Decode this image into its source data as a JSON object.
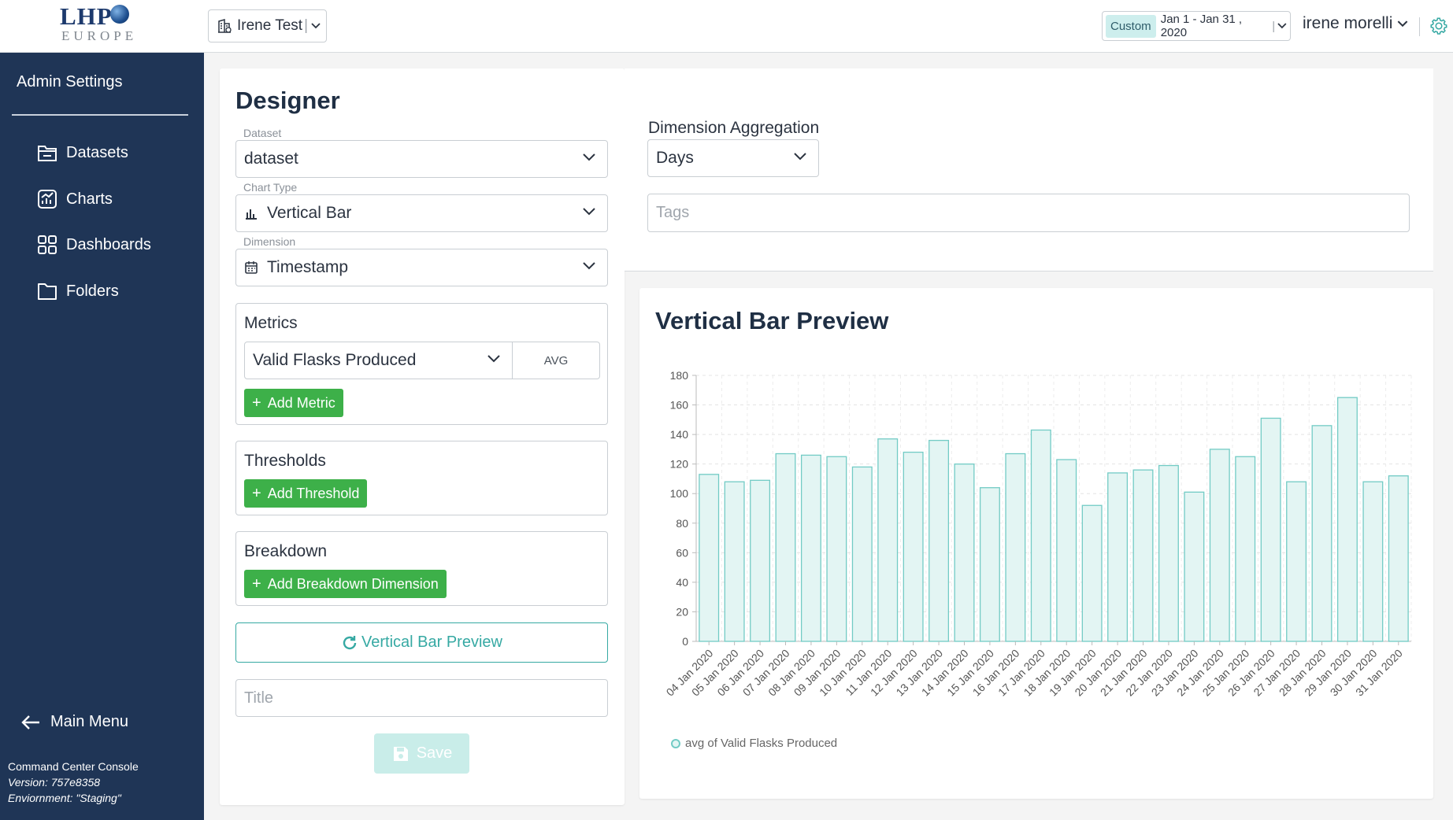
{
  "header": {
    "logo_main": "LHP",
    "logo_sub": "EUROPE",
    "project": "Irene Test",
    "date_badge": "Custom",
    "date_range": "Jan 1 - Jan 31 , 2020",
    "user": "irene morelli"
  },
  "sidebar": {
    "title": "Admin Settings",
    "items": [
      {
        "label": "Datasets",
        "icon": "dataset-icon"
      },
      {
        "label": "Charts",
        "icon": "chart-icon"
      },
      {
        "label": "Dashboards",
        "icon": "dashboard-icon"
      },
      {
        "label": "Folders",
        "icon": "folder-icon"
      }
    ],
    "main_menu": "Main Menu",
    "footer": {
      "app": "Command Center Console",
      "version": "Version: 757e8358",
      "environment": "Enviornment: \"Staging\""
    }
  },
  "designer": {
    "title": "Designer",
    "dataset_label": "Dataset",
    "dataset_value": "dataset",
    "chart_type_label": "Chart Type",
    "chart_type_value": "Vertical Bar",
    "dimension_label": "Dimension",
    "dimension_value": "Timestamp",
    "metrics_title": "Metrics",
    "metric_value": "Valid Flasks Produced",
    "metric_agg": "AVG",
    "add_metric": "Add Metric",
    "thresholds_title": "Thresholds",
    "add_threshold": "Add Threshold",
    "breakdown_title": "Breakdown",
    "add_breakdown": "Add Breakdown Dimension",
    "preview_button": "Vertical Bar Preview",
    "title_placeholder": "Title",
    "save_button": "Save",
    "aggregation_label": "Dimension Aggregation",
    "aggregation_value": "Days",
    "tags_placeholder": "Tags"
  },
  "preview": {
    "title": "Vertical Bar Preview"
  },
  "colors": {
    "sidebar_bg": "#1f3556",
    "accent_green": "#3db049",
    "accent_teal": "#36a9a3",
    "bar_fill": "#e3f5f3",
    "bar_stroke": "#72cbc5"
  },
  "chart_data": {
    "type": "bar",
    "categories": [
      "04 Jan 2020",
      "05 Jan 2020",
      "06 Jan 2020",
      "07 Jan 2020",
      "08 Jan 2020",
      "09 Jan 2020",
      "10 Jan 2020",
      "11 Jan 2020",
      "12 Jan 2020",
      "13 Jan 2020",
      "14 Jan 2020",
      "15 Jan 2020",
      "16 Jan 2020",
      "17 Jan 2020",
      "18 Jan 2020",
      "19 Jan 2020",
      "20 Jan 2020",
      "21 Jan 2020",
      "22 Jan 2020",
      "23 Jan 2020",
      "24 Jan 2020",
      "25 Jan 2020",
      "26 Jan 2020",
      "27 Jan 2020",
      "28 Jan 2020",
      "29 Jan 2020",
      "30 Jan 2020",
      "31 Jan 2020"
    ],
    "series": [
      {
        "name": "avg of Valid Flasks Produced",
        "values": [
          113,
          108,
          109,
          127,
          126,
          125,
          118,
          137,
          128,
          136,
          120,
          104,
          127,
          143,
          123,
          92,
          114,
          116,
          119,
          101,
          130,
          125,
          151,
          108,
          146,
          165,
          108,
          112
        ]
      }
    ],
    "ylim": [
      0,
      180
    ],
    "yticks": [
      0,
      20,
      40,
      60,
      80,
      100,
      120,
      140,
      160,
      180
    ],
    "grid": true,
    "legend": "bottom-left"
  }
}
